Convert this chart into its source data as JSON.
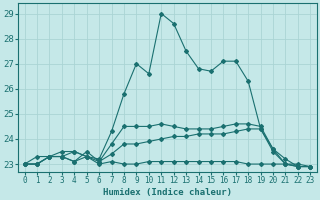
{
  "xlabel": "Humidex (Indice chaleur)",
  "xlim": [
    -0.5,
    23.5
  ],
  "ylim": [
    22.7,
    29.4
  ],
  "xticks": [
    0,
    1,
    2,
    3,
    4,
    5,
    6,
    7,
    8,
    9,
    10,
    11,
    12,
    13,
    14,
    15,
    16,
    17,
    18,
    19,
    20,
    21,
    22,
    23
  ],
  "yticks": [
    23,
    24,
    25,
    26,
    27,
    28,
    29
  ],
  "background_color": "#c5e8e8",
  "grid_color": "#aad4d4",
  "line_color": "#1a7070",
  "lines": [
    [
      23.0,
      23.3,
      23.3,
      23.3,
      23.5,
      23.3,
      23.0,
      23.1,
      23.0,
      23.0,
      23.1,
      23.1,
      23.1,
      23.1,
      23.1,
      23.1,
      23.1,
      23.1,
      23.0,
      23.0,
      23.0,
      23.0,
      22.9,
      22.9
    ],
    [
      23.0,
      23.0,
      23.3,
      23.3,
      23.1,
      23.3,
      23.1,
      23.4,
      23.8,
      23.8,
      23.9,
      24.0,
      24.1,
      24.1,
      24.2,
      24.2,
      24.2,
      24.3,
      24.4,
      24.4,
      23.5,
      23.0,
      23.0,
      22.9
    ],
    [
      23.0,
      23.0,
      23.3,
      23.3,
      23.1,
      23.5,
      23.1,
      23.8,
      24.5,
      24.5,
      24.5,
      24.6,
      24.5,
      24.4,
      24.4,
      24.4,
      24.5,
      24.6,
      24.6,
      24.5,
      23.6,
      23.2,
      22.9,
      22.9
    ],
    [
      23.0,
      23.0,
      23.3,
      23.5,
      23.5,
      23.3,
      23.2,
      24.3,
      25.8,
      27.0,
      26.6,
      29.0,
      28.6,
      27.5,
      26.8,
      26.7,
      27.1,
      27.1,
      26.3,
      24.4,
      23.6,
      23.0,
      22.9,
      22.9
    ]
  ]
}
